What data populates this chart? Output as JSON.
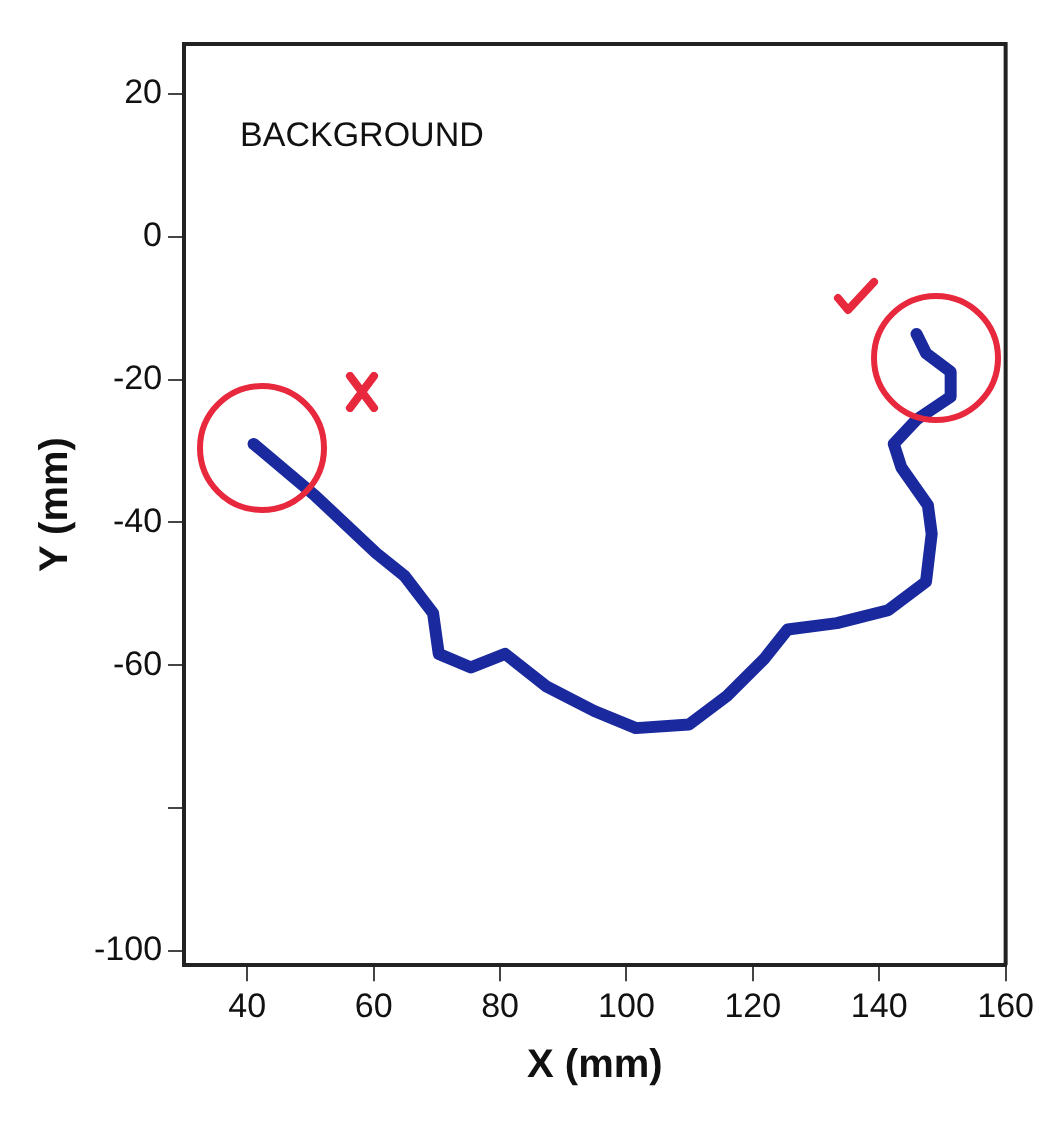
{
  "chart_data": {
    "type": "line",
    "xlabel": "X (mm)",
    "ylabel": "Y (mm)",
    "annotations": [
      "BACKGROUND"
    ],
    "x": [
      41,
      50.8,
      60.4,
      64.9,
      69.4,
      70.3,
      75.4,
      80.8,
      87.4,
      94.9,
      101.5,
      109.9,
      115.9,
      121.9,
      125.5,
      133.3,
      141.4,
      147.4,
      148.3,
      147.7,
      143.5,
      142.3,
      145.9,
      151.3,
      151.3,
      147.4,
      145.9
    ],
    "series": [
      {
        "color": "#1a2a9e",
        "values": [
          -29,
          -36.3,
          -44.3,
          -47.5,
          -52.7,
          -58.4,
          -60.3,
          -58.4,
          -63,
          -66.4,
          -68.8,
          -68.3,
          -64.3,
          -59,
          -55,
          -54.1,
          -52.3,
          -48.3,
          -41.6,
          -37.6,
          -32.3,
          -29,
          -25.6,
          -22.4,
          -18.9,
          -16.3,
          -13.6
        ]
      }
    ],
    "xlim": [
      30,
      160
    ],
    "xticks": [
      40,
      60,
      80,
      100,
      120,
      140,
      160
    ],
    "ylim": [
      -102,
      27
    ],
    "yticks": [
      -100,
      {
        "value": -80,
        "label": null
      },
      -60,
      -40,
      -20,
      0,
      20
    ],
    "grid": false,
    "legend": false,
    "marker": "none",
    "line_style": "solid"
  }
}
